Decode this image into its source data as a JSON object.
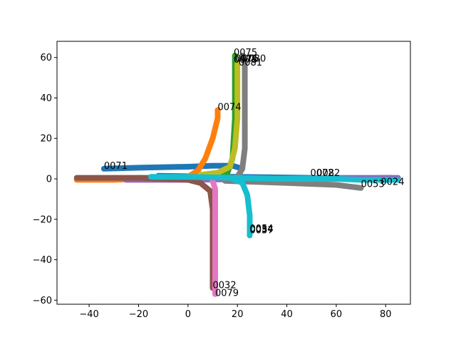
{
  "chart_data": {
    "type": "scatter",
    "title": "",
    "xlabel": "",
    "ylabel": "",
    "xlim": [
      -53,
      90
    ],
    "ylim": [
      -62,
      68
    ],
    "grid": false,
    "legend": "none",
    "xticks": [
      -40,
      -20,
      0,
      20,
      40,
      60,
      80
    ],
    "yticks": [
      -60,
      -40,
      -20,
      0,
      20,
      40,
      60
    ],
    "series": [
      {
        "color": "#1f77b4",
        "path": [
          [
            -34,
            5
          ],
          [
            -20,
            5.5
          ],
          [
            0,
            6
          ],
          [
            10,
            6.5
          ],
          [
            18,
            6.5
          ],
          [
            22,
            5
          ]
        ]
      },
      {
        "color": "#1f77b4",
        "path": [
          [
            -12,
            1.5
          ],
          [
            20,
            1
          ],
          [
            50,
            0.5
          ],
          [
            70,
            0
          ],
          [
            82,
            -0.5
          ]
        ]
      },
      {
        "color": "#ff7f0e",
        "path": [
          [
            -45,
            -0.5
          ],
          [
            -30,
            -0.5
          ],
          [
            -20,
            0
          ],
          [
            -10,
            0.5
          ],
          [
            0,
            1
          ],
          [
            4,
            4
          ],
          [
            7,
            10
          ],
          [
            10,
            20
          ],
          [
            12,
            30
          ],
          [
            12,
            34
          ]
        ]
      },
      {
        "color": "#2ca02c",
        "path": [
          [
            -20,
            0.5
          ],
          [
            0,
            0.5
          ],
          [
            10,
            1
          ],
          [
            16,
            3
          ],
          [
            18,
            10
          ],
          [
            19,
            30
          ],
          [
            19,
            50
          ],
          [
            19,
            61
          ]
        ]
      },
      {
        "color": "#d62728",
        "path": [
          [
            -24,
            0
          ],
          [
            -5,
            0
          ],
          [
            15,
            0
          ],
          [
            40,
            0
          ],
          [
            60,
            0
          ],
          [
            82,
            0.5
          ]
        ]
      },
      {
        "color": "#9467bd",
        "path": [
          [
            -25,
            -0.5
          ],
          [
            0,
            -0.5
          ],
          [
            30,
            0
          ],
          [
            60,
            0.5
          ],
          [
            85,
            0.5
          ]
        ]
      },
      {
        "color": "#8c564b",
        "path": [
          [
            -45,
            0.5
          ],
          [
            -20,
            0.5
          ],
          [
            0,
            -0.5
          ],
          [
            5,
            -2
          ],
          [
            9,
            -6
          ],
          [
            10,
            -15
          ],
          [
            10,
            -30
          ],
          [
            10,
            -45
          ],
          [
            10,
            -54
          ]
        ]
      },
      {
        "color": "#e377c2",
        "path": [
          [
            10,
            -1
          ],
          [
            11,
            -5
          ],
          [
            11,
            -20
          ],
          [
            11,
            -40
          ],
          [
            11,
            -57
          ]
        ]
      },
      {
        "color": "#7f7f7f",
        "path": [
          [
            20,
            1
          ],
          [
            22,
            5
          ],
          [
            23,
            15
          ],
          [
            23,
            30
          ],
          [
            23,
            45
          ],
          [
            23,
            58
          ],
          [
            22,
            61
          ]
        ]
      },
      {
        "color": "#7f7f7f",
        "path": [
          [
            15,
            -1
          ],
          [
            40,
            -2
          ],
          [
            60,
            -3
          ],
          [
            70,
            -4.5
          ]
        ]
      },
      {
        "color": "#bcbd22",
        "path": [
          [
            5,
            2
          ],
          [
            12,
            3
          ],
          [
            17,
            6
          ],
          [
            19,
            15
          ],
          [
            20,
            30
          ],
          [
            20,
            45
          ],
          [
            20,
            57
          ]
        ]
      },
      {
        "color": "#17becf",
        "path": [
          [
            -15,
            1
          ],
          [
            0,
            1
          ],
          [
            20,
            0.5
          ],
          [
            40,
            0
          ],
          [
            60,
            0
          ],
          [
            70,
            -0.5
          ],
          [
            85,
            -0.5
          ]
        ]
      },
      {
        "color": "#17becf",
        "path": [
          [
            18,
            0
          ],
          [
            22,
            -2
          ],
          [
            24,
            -8
          ],
          [
            25,
            -18
          ],
          [
            25,
            -28
          ]
        ]
      }
    ],
    "annotations": [
      {
        "text": "0071",
        "x": -34,
        "y": 5
      },
      {
        "text": "0074",
        "x": 12,
        "y": 34
      },
      {
        "text": "0075",
        "x": 18.5,
        "y": 61
      },
      {
        "text": "0078",
        "x": 18.5,
        "y": 57.5
      },
      {
        "text": "0076",
        "x": 19,
        "y": 58
      },
      {
        "text": "0080",
        "x": 22,
        "y": 58
      },
      {
        "text": "0081",
        "x": 20.5,
        "y": 56
      },
      {
        "text": "0072",
        "x": 49.5,
        "y": 1.5
      },
      {
        "text": "0082",
        "x": 52,
        "y": 1.5
      },
      {
        "text": "0053",
        "x": 70,
        "y": -4
      },
      {
        "text": "0024",
        "x": 78,
        "y": -3
      },
      {
        "text": "0054",
        "x": 25,
        "y": -26
      },
      {
        "text": "0034",
        "x": 25,
        "y": -26.5
      },
      {
        "text": "0057",
        "x": 25,
        "y": -27
      },
      {
        "text": "0032",
        "x": 10,
        "y": -54
      },
      {
        "text": "0079",
        "x": 11,
        "y": -58
      }
    ]
  }
}
